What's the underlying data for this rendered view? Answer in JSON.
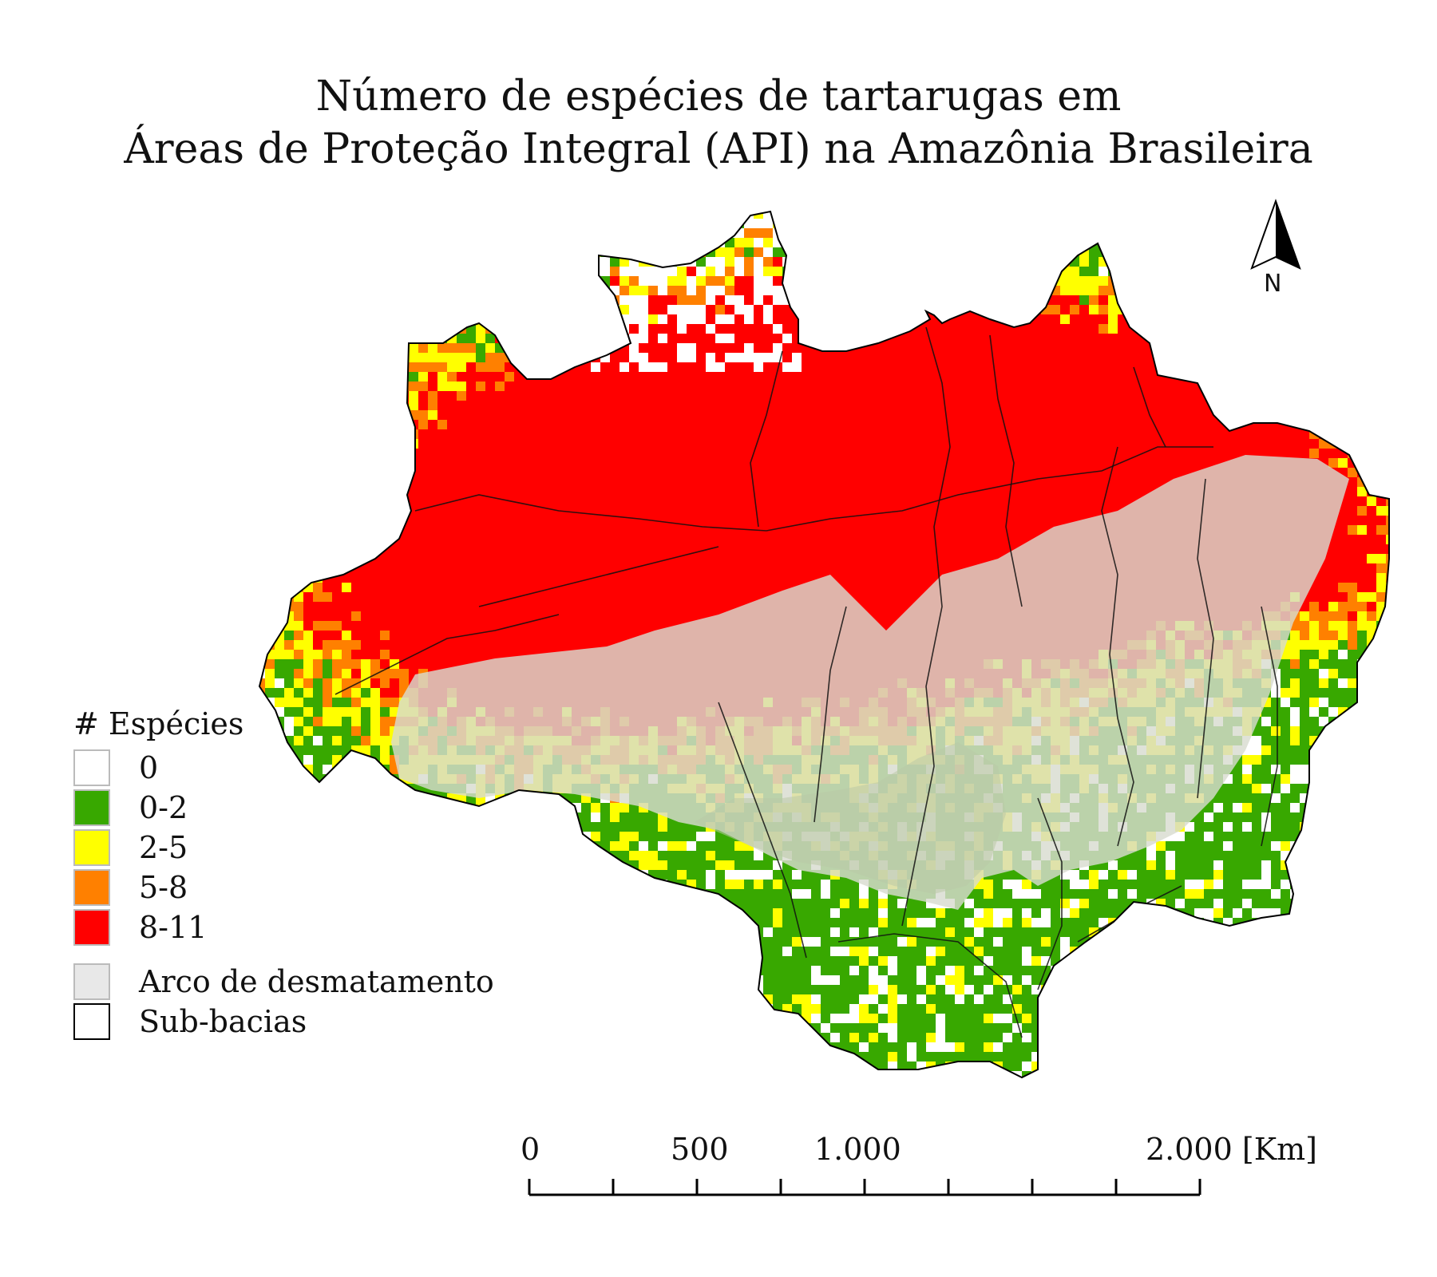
{
  "title": {
    "line1": "Número de espécies de tartarugas em",
    "line2": "Áreas de Proteção Integral (API) na Amazônia Brasileira"
  },
  "north_arrow": {
    "label": "N",
    "icon": "north-arrow-icon"
  },
  "legend": {
    "title": "# Espécies",
    "classes": [
      {
        "label": "0",
        "color": "#ffffff"
      },
      {
        "label": "0-2",
        "color": "#38a800"
      },
      {
        "label": "2-5",
        "color": "#ffff00"
      },
      {
        "label": "5-8",
        "color": "#ff8000"
      },
      {
        "label": "8-11",
        "color": "#ff0000"
      }
    ],
    "extra": [
      {
        "label": "Arco de desmatamento",
        "color": "#e8e8e8"
      },
      {
        "label": "Sub-bacias",
        "color": "#ffffff"
      }
    ]
  },
  "scale_bar": {
    "labels": [
      "0",
      "500",
      "1.000",
      "2.000 [Km]"
    ],
    "label_values": [
      0,
      500,
      1000,
      2000
    ],
    "max_km": 2000,
    "tick_count": 9
  },
  "colors": {
    "zero": "#ffffff",
    "low": "#38a800",
    "mid": "#ffff00",
    "high": "#ff8000",
    "top": "#ff0000",
    "arc": "#d8dcd0",
    "boundary": "#000000",
    "subbasin": "#111111"
  }
}
